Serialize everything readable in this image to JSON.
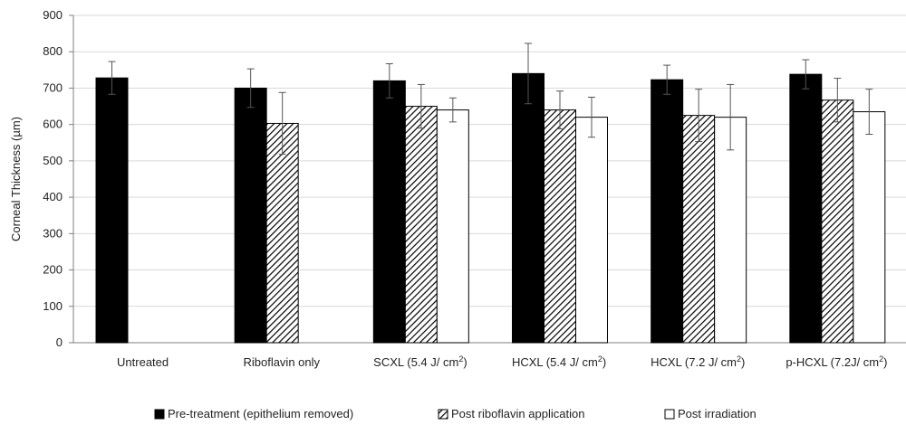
{
  "chart_data": {
    "type": "bar",
    "ylabel": "Corneal Thickness (µm)",
    "ylim": [
      0,
      900
    ],
    "yticks": [
      0,
      100,
      200,
      300,
      400,
      500,
      600,
      700,
      800,
      900
    ],
    "grid": true,
    "legend_position": "bottom",
    "categories": [
      {
        "base": "Untreated",
        "sup": ""
      },
      {
        "base": "Riboflavin only",
        "sup": ""
      },
      {
        "base": "SCXL (5.4 J/ cm",
        "sup": "2",
        "tail": ")"
      },
      {
        "base": "HCXL (5.4 J/ cm",
        "sup": "2",
        "tail": ")"
      },
      {
        "base": "HCXL (7.2 J/ cm",
        "sup": "2",
        "tail": ")"
      },
      {
        "base": "p-HCXL (7.2J/ cm",
        "sup": "2",
        "tail": ")"
      }
    ],
    "series": [
      {
        "name": "Pre-treatment (epithelium removed)",
        "fill": "solid",
        "color": "#000000",
        "values": [
          728,
          700,
          720,
          740,
          723,
          738
        ],
        "errors": [
          45,
          53,
          47,
          83,
          40,
          40
        ]
      },
      {
        "name": "Post riboflavin application",
        "fill": "hatch",
        "color": "#000000",
        "values": [
          null,
          603,
          650,
          640,
          625,
          667
        ],
        "errors": [
          null,
          85,
          60,
          52,
          72,
          60
        ]
      },
      {
        "name": "Post irradiation",
        "fill": "open",
        "color": "#ffffff",
        "values": [
          null,
          null,
          640,
          620,
          620,
          635
        ],
        "errors": [
          null,
          null,
          33,
          55,
          90,
          62
        ]
      }
    ]
  }
}
